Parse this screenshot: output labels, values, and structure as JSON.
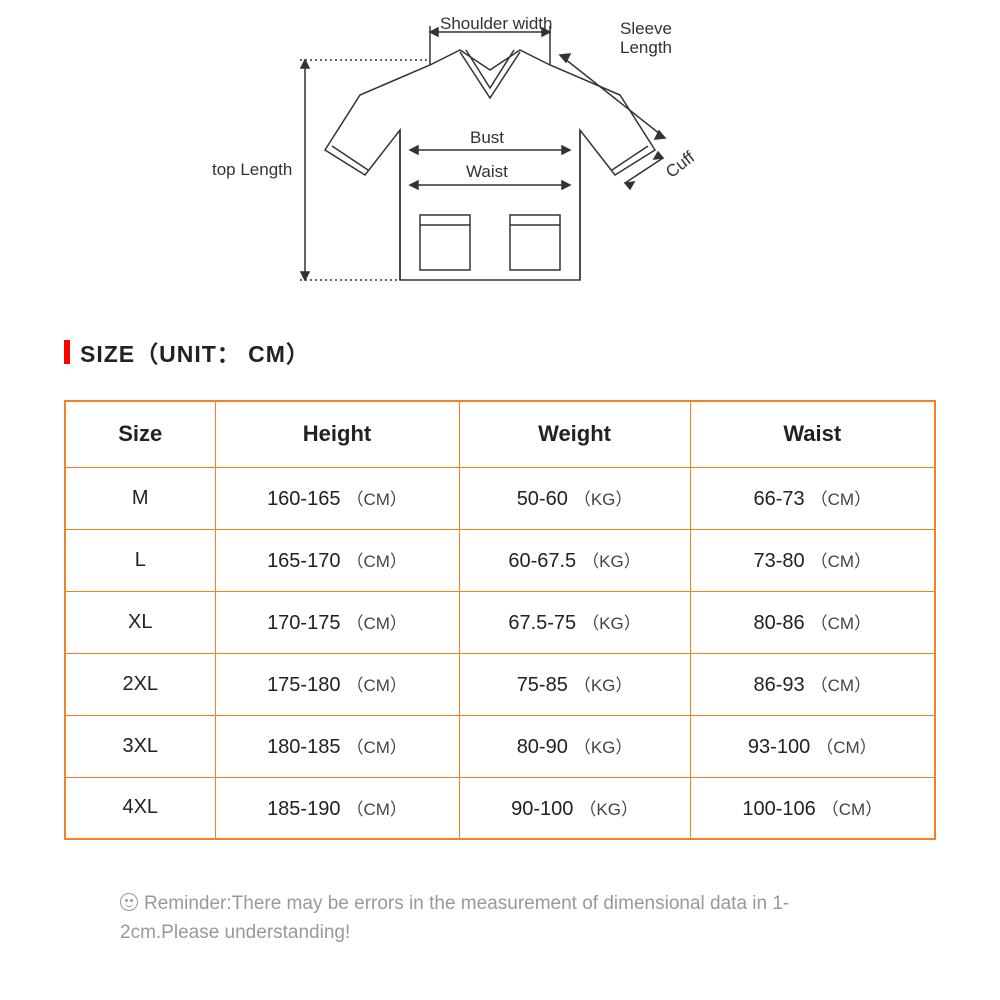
{
  "diagram": {
    "labels": {
      "shoulder_width": "Shoulder width",
      "sleeve_length": "Sleeve\nLength",
      "cuff": "Cuff",
      "bust": "Bust",
      "waist": "Waist",
      "top_length": "top Length"
    },
    "stroke": "#333333",
    "stroke_width": 1.5
  },
  "title": {
    "text": "SIZE（UNIT： CM）",
    "bar_color": "#ff0000",
    "font_size": 23
  },
  "table": {
    "border_color": "#f58220",
    "columns": [
      "Size",
      "Height",
      "Weight",
      "Waist"
    ],
    "units": [
      "",
      "（CM）",
      "（KG）",
      "（CM）"
    ],
    "rows": [
      {
        "size": "M",
        "height": "160-165",
        "weight": "50-60",
        "waist": "66-73"
      },
      {
        "size": "L",
        "height": "165-170",
        "weight": "60-67.5",
        "waist": "73-80"
      },
      {
        "size": "XL",
        "height": "170-175",
        "weight": "67.5-75",
        "waist": "80-86"
      },
      {
        "size": "2XL",
        "height": "175-180",
        "weight": "75-85",
        "waist": "86-93"
      },
      {
        "size": "3XL",
        "height": "180-185",
        "weight": "80-90",
        "waist": "93-100"
      },
      {
        "size": "4XL",
        "height": "185-190",
        "weight": "90-100",
        "waist": "100-106"
      }
    ],
    "header_fontsize": 22,
    "cell_fontsize": 20,
    "unit_fontsize": 17
  },
  "reminder": {
    "text": "Reminder:There may be errors in the measurement of dimensional data in 1-2cm.Please understanding!",
    "color": "#999999",
    "fontsize": 19
  }
}
